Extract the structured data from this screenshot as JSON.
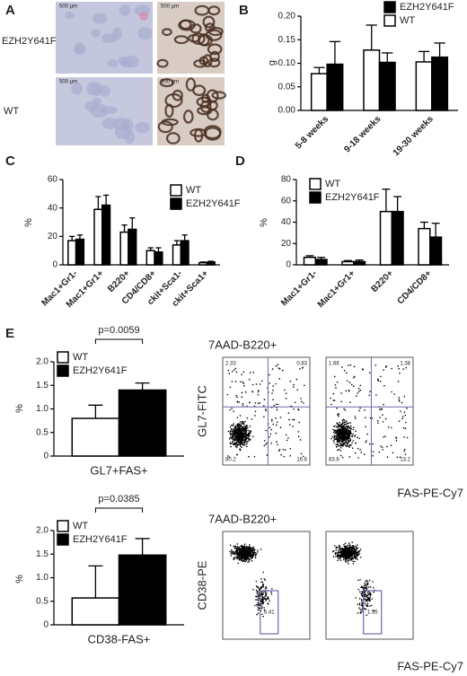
{
  "figure": {
    "panel_labels": [
      "A",
      "B",
      "C",
      "D",
      "E"
    ],
    "panel_a_rows": [
      "EZH2Y641F",
      "WT"
    ],
    "scale_bars": [
      "500 µm",
      "500 µm",
      "500 µm",
      "500 µm"
    ],
    "flow": {
      "titles": [
        "7AAD-B220+",
        "7AAD-B220+"
      ],
      "y_labels": [
        "GL7-FITC",
        "CD38-PE"
      ],
      "x_labels": [
        "FAS-PE-Cy7",
        "FAS-PE-Cy7"
      ],
      "quadrants": [
        [
          "2.33",
          "0.83",
          "80.2",
          "16.6"
        ],
        [
          "1.66",
          "1.38",
          "83.8",
          "13.2"
        ]
      ],
      "gates": [
        "6.41",
        "1.55"
      ]
    }
  },
  "chart_data": [
    {
      "type": "bar",
      "ylabel": "g",
      "categories": [
        "5-8 weeks",
        "9-18 weeks",
        "19-30 weeks"
      ],
      "series": [
        {
          "name": "WT",
          "color": "#ffffff",
          "values": [
            0.078,
            0.128,
            0.103
          ],
          "errors": [
            0.013,
            0.053,
            0.022
          ]
        },
        {
          "name": "EZH2Y641F",
          "color": "#000000",
          "values": [
            0.098,
            0.102,
            0.113
          ],
          "errors": [
            0.048,
            0.02,
            0.03
          ]
        }
      ],
      "ylim": [
        0,
        0.2
      ],
      "yticks": [
        {
          "value": 0,
          "label": "0.00"
        },
        {
          "value": 0.05,
          "label": "0.05"
        },
        {
          "value": 0.1,
          "label": "0.10"
        },
        {
          "value": 0.15,
          "label": "0.15"
        },
        {
          "value": 0.2,
          "label": "0.20"
        }
      ],
      "legend": "upper right"
    },
    {
      "type": "bar",
      "ylabel": "%",
      "categories": [
        "Mac1+Gr1-",
        "Mac1+Gr1+",
        "B220+",
        "CD4/CD8+",
        "ckit+Sca1-",
        "ckit+Sca1+"
      ],
      "series": [
        {
          "name": "WT",
          "color": "#ffffff",
          "values": [
            17,
            39,
            23,
            10,
            14,
            1.5
          ],
          "errors": [
            3,
            9,
            5,
            2,
            3,
            0.5
          ]
        },
        {
          "name": "EZH2Y641F",
          "color": "#000000",
          "values": [
            18,
            42,
            25,
            9,
            17,
            2
          ],
          "errors": [
            3,
            7,
            8,
            3,
            4,
            0.5
          ]
        }
      ],
      "ylim": [
        0,
        60
      ],
      "yticks": [
        0,
        20,
        40,
        60
      ],
      "legend": "upper right"
    },
    {
      "type": "bar",
      "ylabel": "%",
      "categories": [
        "Mac1+Gr1-",
        "Mac1+Gr1+",
        "B220+",
        "CD4/CD8+"
      ],
      "series": [
        {
          "name": "WT",
          "color": "#ffffff",
          "values": [
            7,
            3,
            50,
            34
          ],
          "errors": [
            1.5,
            1,
            21,
            6
          ]
        },
        {
          "name": "EZH2Y641F",
          "color": "#000000",
          "values": [
            5,
            3,
            50,
            26
          ],
          "errors": [
            2,
            1.5,
            14,
            13
          ]
        }
      ],
      "ylim": [
        0,
        80
      ],
      "yticks": [
        0,
        20,
        40,
        60,
        80
      ],
      "legend": "upper left"
    },
    {
      "type": "bar",
      "ylabel": "%",
      "xlabel": "GL7+FAS+",
      "series": [
        {
          "name": "WT",
          "color": "#ffffff",
          "values": [
            0.8
          ],
          "errors": [
            0.28
          ]
        },
        {
          "name": "EZH2Y641F",
          "color": "#000000",
          "values": [
            1.4
          ],
          "errors": [
            0.15
          ]
        }
      ],
      "ylim": [
        0,
        2
      ],
      "yticks": [
        0,
        0.5,
        {
          "value": 1,
          "label": "1.0"
        },
        1.5,
        {
          "value": 2,
          "label": "2.0"
        }
      ],
      "annotations": [
        "p=0.0059"
      ],
      "legend": "upper left"
    },
    {
      "type": "bar",
      "ylabel": "%",
      "xlabel": "CD38-FAS+",
      "series": [
        {
          "name": "WT",
          "color": "#ffffff",
          "values": [
            0.57
          ],
          "errors": [
            0.68
          ]
        },
        {
          "name": "EZH2Y641F",
          "color": "#000000",
          "values": [
            1.48
          ],
          "errors": [
            0.35
          ]
        }
      ],
      "ylim": [
        0,
        2
      ],
      "yticks": [
        0,
        0.5,
        {
          "value": 1,
          "label": "1.0"
        },
        1.5,
        {
          "value": 2,
          "label": "2.0"
        }
      ],
      "annotations": [
        "p=0.0385"
      ],
      "legend": "upper left"
    }
  ]
}
